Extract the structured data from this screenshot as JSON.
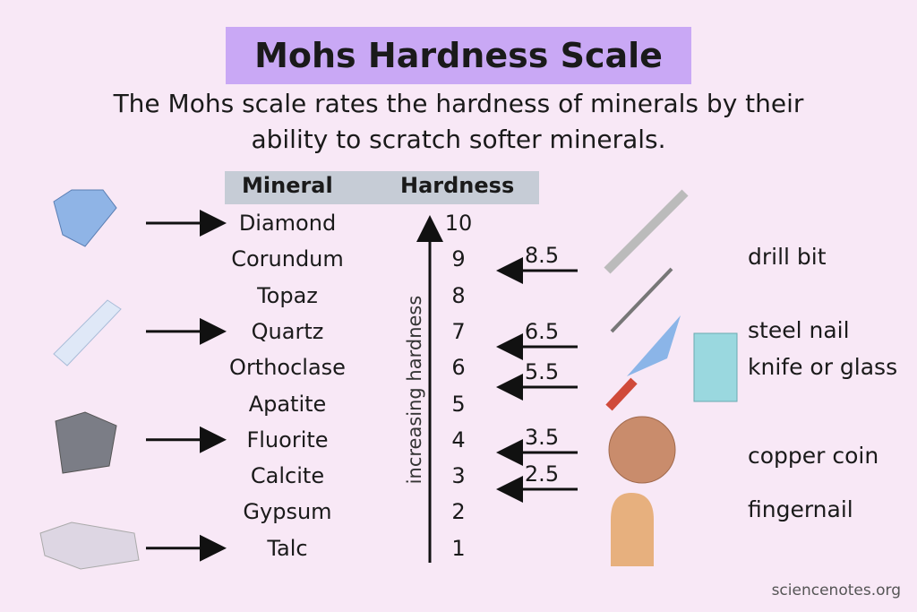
{
  "title": "Mohs Hardness Scale",
  "subtitle": "The Mohs scale rates the hardness of minerals by their ability to scratch softer minerals.",
  "table": {
    "headers": [
      "Mineral",
      "Hardness"
    ],
    "rows": [
      [
        "Diamond",
        10
      ],
      [
        "Corundum",
        9
      ],
      [
        "Topaz",
        8
      ],
      [
        "Quartz",
        7
      ],
      [
        "Orthoclase",
        6
      ],
      [
        "Apatite",
        5
      ],
      [
        "Fluorite",
        4
      ],
      [
        "Calcite",
        3
      ],
      [
        "Gypsum",
        2
      ],
      [
        "Talc",
        1
      ]
    ]
  },
  "axis_label": "increasing hardness",
  "references": [
    {
      "value": 8.5,
      "label": "drill bit"
    },
    {
      "value": 6.5,
      "label": "steel nail"
    },
    {
      "value": 5.5,
      "label": "knife or glass"
    },
    {
      "value": 3.5,
      "label": "copper coin"
    },
    {
      "value": 2.5,
      "label": "fingernail"
    }
  ],
  "footer": "sciencenotes.org"
}
